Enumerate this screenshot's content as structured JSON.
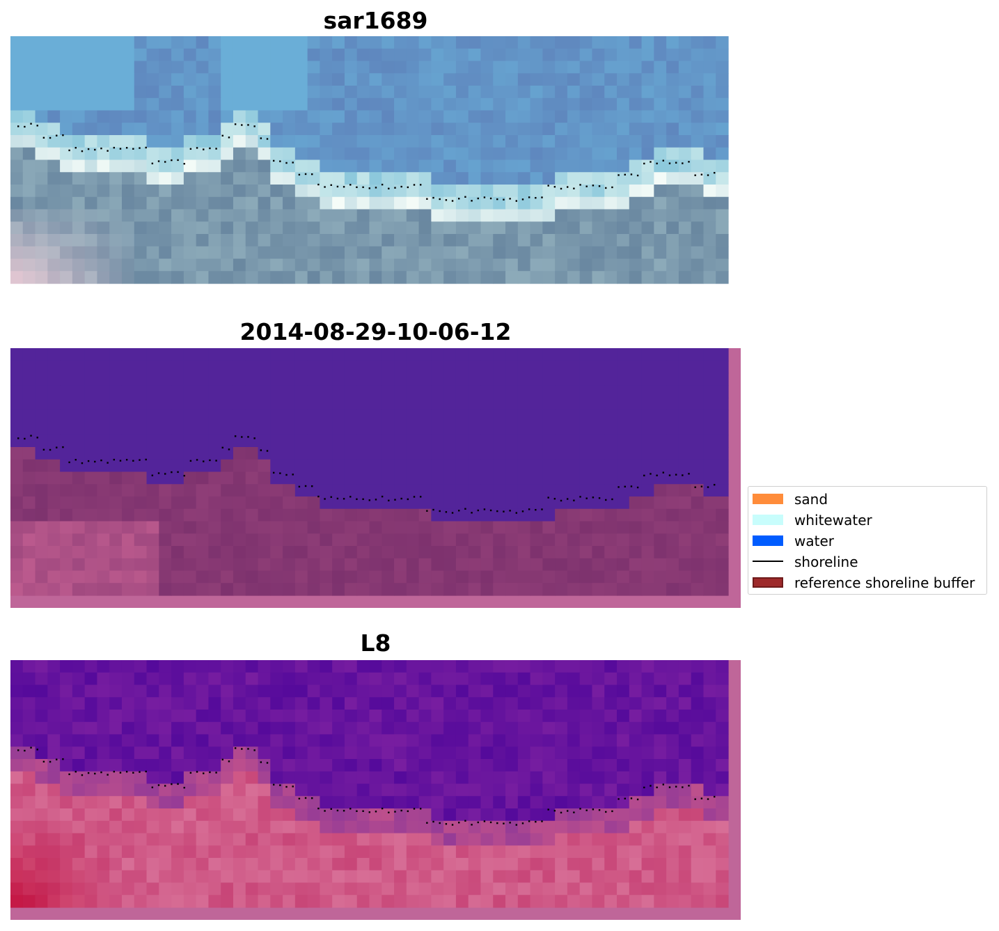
{
  "panels": [
    {
      "id": "rgb",
      "title": "sar1689"
    },
    {
      "id": "classified",
      "title": "2014-08-29-10-06-12"
    },
    {
      "id": "mndwi",
      "title": "L8"
    }
  ],
  "legend": {
    "items": [
      {
        "label": "sand",
        "kind": "patch",
        "color": "#ff8c3a"
      },
      {
        "label": "whitewater",
        "kind": "patch",
        "color": "#c8fdfc"
      },
      {
        "label": "water",
        "kind": "patch",
        "color": "#005cff"
      },
      {
        "label": "shoreline",
        "kind": "line",
        "color": "#000000"
      },
      {
        "label": "reference shoreline buffer",
        "kind": "patch",
        "color": "#9e2a2b",
        "edge": "#6e1a1a"
      }
    ]
  },
  "colors": {
    "water_class": "#53249a",
    "buffer_overlay": "#bf6699",
    "shoreline_points": "#000000"
  }
}
